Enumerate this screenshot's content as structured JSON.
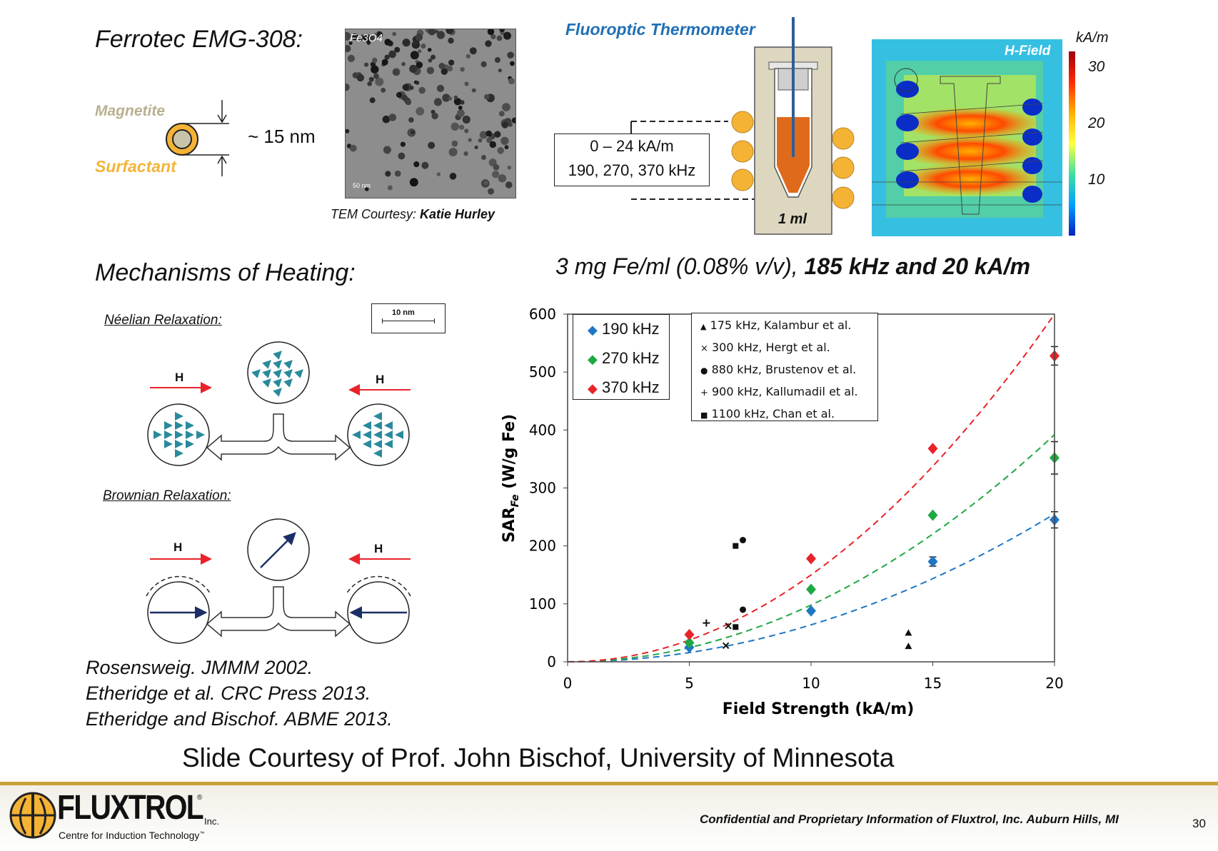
{
  "top_left": {
    "title": "Ferrotec EMG-308:",
    "magnetite_label": "Magnetite",
    "surfactant_label": "Surfactant",
    "size_label": "~ 15 nm",
    "tem_formula": "Fe3O4",
    "tem_scale": "50 nm",
    "tem_credit_prefix": "TEM Courtesy: ",
    "tem_credit_name": "Katie Hurley"
  },
  "thermometer": {
    "title": "Fluoroptic Thermometer",
    "field_range": "0 – 24 kA/m",
    "frequencies": "190, 270, 370 kHz",
    "volume": "1 ml"
  },
  "hfield": {
    "title": "H-Field",
    "unit": "kA/m",
    "ticks": [
      "30",
      "20",
      "10"
    ]
  },
  "conditions": {
    "normal": "3 mg Fe/ml (0.08% v/v), ",
    "bold": "185 kHz and 20 kA/m"
  },
  "mechanisms": {
    "title": "Mechanisms of Heating:",
    "neelian": "Néelian Relaxation:",
    "brownian": "Brownian Relaxation:",
    "scale": "10 nm",
    "h_label": "H"
  },
  "references": [
    "Rosensweig. JMMM 2002.",
    "Etheridge et al. CRC Press 2013.",
    "Etheridge and Bischof. ABME 2013."
  ],
  "courtesy": "Slide Courtesy of Prof. John Bischof, University of Minnesota",
  "footer": {
    "logo_main": "FLUXTROL",
    "logo_reg": "®",
    "logo_inc": "Inc.",
    "logo_sub": "Centre for Induction Technology",
    "logo_tm": "™",
    "confidential": "Confidential and Proprietary Information of Fluxtrol, Inc. Auburn Hills, MI",
    "page_number": "30"
  },
  "colors": {
    "accent_blue": "#1f6fb5",
    "gold": "#f5b335",
    "footer_line": "#c8a23a",
    "s190": "#1f77c4",
    "s270": "#1fa843",
    "s370": "#e8232a"
  },
  "chart_data": {
    "type": "scatter",
    "xlabel": "Field Strength (kA/m)",
    "ylabel": "SAR_Fe (W/g Fe)",
    "xlim": [
      0,
      20
    ],
    "ylim": [
      0,
      600
    ],
    "xticks": [
      0,
      5,
      10,
      15,
      20
    ],
    "yticks": [
      0,
      100,
      200,
      300,
      400,
      500,
      600
    ],
    "series": [
      {
        "name": "190 kHz",
        "color": "#1f77c4",
        "x": [
          5,
          10,
          15,
          20
        ],
        "y": [
          25,
          88,
          173,
          245
        ],
        "err": [
          0,
          0,
          8,
          14
        ],
        "fit_c": 0.638
      },
      {
        "name": "270 kHz",
        "color": "#1fa843",
        "x": [
          5,
          10,
          15,
          20
        ],
        "y": [
          33,
          125,
          253,
          352
        ],
        "err": [
          0,
          0,
          0,
          28
        ],
        "fit_c": 0.98
      },
      {
        "name": "370 kHz",
        "color": "#e8232a",
        "x": [
          5,
          10,
          15,
          20
        ],
        "y": [
          47,
          178,
          368,
          528
        ],
        "err": [
          0,
          0,
          0,
          16
        ],
        "fit_c": 1.5
      }
    ],
    "fit_exponent": 2,
    "literature": [
      {
        "name": "175 kHz, Kalambur et al.",
        "marker": "triangle",
        "x": [
          14,
          14
        ],
        "y": [
          50,
          27
        ]
      },
      {
        "name": "300 kHz, Hergt et al.",
        "marker": "x",
        "x": [
          6.5,
          6.6
        ],
        "y": [
          28,
          62
        ]
      },
      {
        "name": "880 kHz, Brustenov et al.",
        "marker": "circle",
        "x": [
          7.2,
          7.2
        ],
        "y": [
          210,
          90
        ]
      },
      {
        "name": "900 kHz, Kallumadil et al.",
        "marker": "plus",
        "x": [
          5.7
        ],
        "y": [
          67
        ]
      },
      {
        "name": "1100 kHz, Chan et al.",
        "marker": "square",
        "x": [
          6.9,
          6.9
        ],
        "y": [
          200,
          60
        ]
      }
    ]
  }
}
